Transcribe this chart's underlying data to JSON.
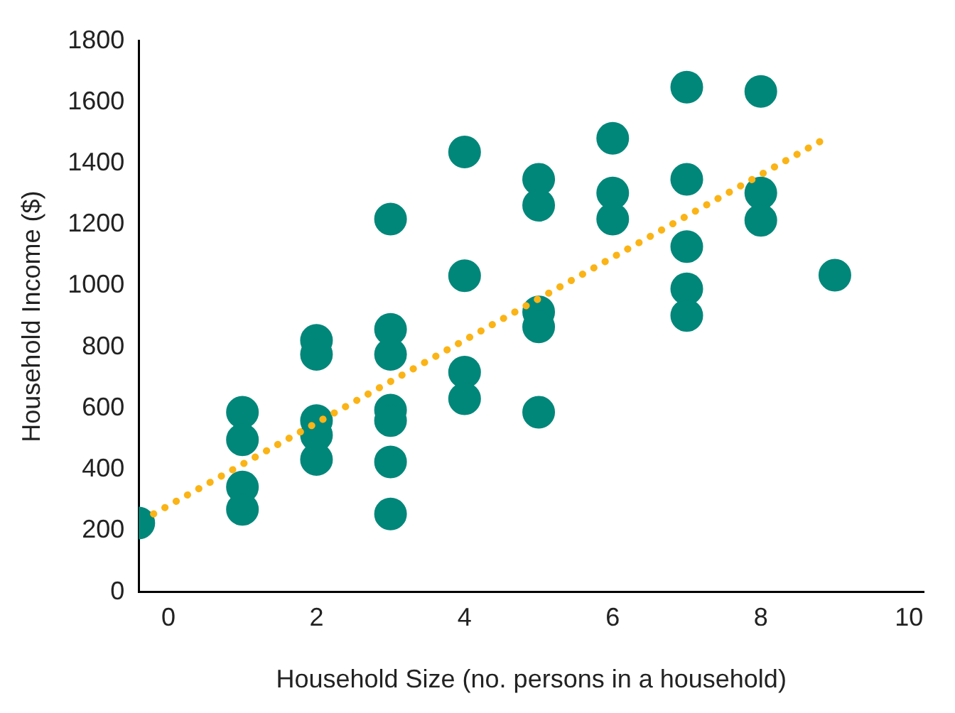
{
  "chart_data": {
    "type": "scatter",
    "xlabel": "Household Size (no. persons in a household)",
    "ylabel": "Household Income ($)",
    "xlim": [
      -0.4,
      10.2
    ],
    "xticks": [
      0,
      2,
      4,
      6,
      8,
      10
    ],
    "ylim": [
      0,
      1800
    ],
    "yticks": [
      0,
      200,
      400,
      600,
      800,
      1000,
      1200,
      1400,
      1600,
      1800
    ],
    "grid": false,
    "legend": false,
    "marker": "circle",
    "series": [
      {
        "type": "scatter",
        "color": "#00877a",
        "x": [
          -0.4,
          1,
          1,
          1,
          1,
          2,
          2,
          2,
          2,
          2,
          3,
          3,
          3,
          3,
          3,
          3,
          3,
          4,
          4,
          4,
          4,
          5,
          5,
          5,
          5,
          5,
          6,
          6,
          6,
          7,
          7,
          7,
          7,
          7,
          8,
          8,
          8,
          9
        ],
        "values": [
          225,
          587,
          497,
          343,
          270,
          822,
          776,
          560,
          512,
          433,
          1218,
          858,
          776,
          594,
          560,
          425,
          255,
          1437,
          1033,
          718,
          631,
          1348,
          1263,
          915,
          866,
          587,
          1482,
          1303,
          1218,
          1649,
          1348,
          1128,
          990,
          903,
          1635,
          1303,
          1214,
          1035
        ]
      },
      {
        "type": "line",
        "color": "#fbb416",
        "line_style": "dotted",
        "marker": "none",
        "x": [
          -0.2,
          8.9
        ],
        "values": [
          255,
          1485
        ]
      }
    ]
  }
}
